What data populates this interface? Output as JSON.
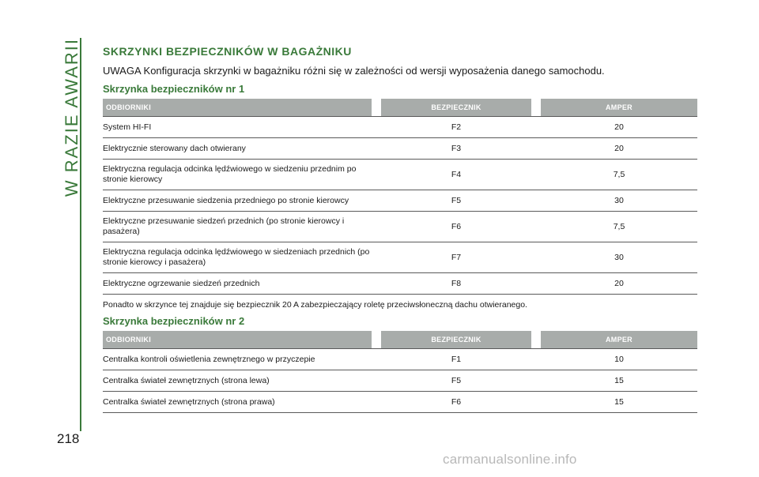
{
  "side_tab": {
    "label": "W RAZIE AWARII"
  },
  "page_number": "218",
  "section_title": "SKRZYNKI BEZPIECZNIKÓW W BAGAŻNIKU",
  "note": "UWAGA Konfiguracja skrzynki w bagażniku różni się w zależności od wersji wyposażenia danego samochodu.",
  "table1": {
    "title": "Skrzynka bezpieczników nr 1",
    "headers": [
      "ODBIORNIKI",
      "BEZPIECZNIK",
      "AMPER"
    ],
    "rows": [
      {
        "load": "System HI-FI",
        "fuse": "F2",
        "amp": "20"
      },
      {
        "load": "Elektrycznie sterowany dach otwierany",
        "fuse": "F3",
        "amp": "20"
      },
      {
        "load": "Elektryczna regulacja odcinka lędźwiowego w siedzeniu przednim po stronie kierowcy",
        "fuse": "F4",
        "amp": "7,5"
      },
      {
        "load": "Elektryczne przesuwanie siedzenia przedniego po stronie kierowcy",
        "fuse": "F5",
        "amp": "30"
      },
      {
        "load": "Elektryczne przesuwanie siedzeń przednich (po stronie kierowcy i pasażera)",
        "fuse": "F6",
        "amp": "7,5"
      },
      {
        "load": "Elektryczna regulacja odcinka lędźwiowego w siedzeniach przednich (po stronie kierowcy i pasażera)",
        "fuse": "F7",
        "amp": "30"
      },
      {
        "load": "Elektryczne ogrzewanie siedzeń przednich",
        "fuse": "F8",
        "amp": "20"
      }
    ]
  },
  "paragraph": "Ponadto w skrzynce tej znajduje się bezpiecznik 20 A zabezpieczający roletę przeciwsłoneczną dachu otwieranego.",
  "table2": {
    "title": "Skrzynka bezpieczników nr 2",
    "headers": [
      "ODBIORNIKI",
      "BEZPIECZNIK",
      "AMPER"
    ],
    "rows": [
      {
        "load": "Centralka kontroli oświetlenia zewnętrznego w przyczepie",
        "fuse": "F1",
        "amp": "10"
      },
      {
        "load": "Centralka świateł zewnętrznych (strona lewa)",
        "fuse": "F5",
        "amp": "15"
      },
      {
        "load": "Centralka świateł zewnętrznych (strona prawa)",
        "fuse": "F6",
        "amp": "15"
      }
    ]
  },
  "watermark": "carmanualsonline.info",
  "colors": {
    "accent": "#3a7a3a",
    "header_bg": "#a8acaa",
    "rule": "#5a5a5a",
    "watermark": "#b8b8b8"
  }
}
